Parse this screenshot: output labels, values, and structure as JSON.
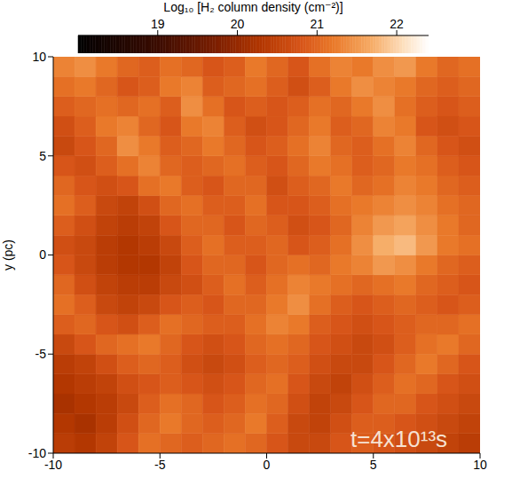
{
  "chart_data": {
    "type": "heatmap",
    "ylabel": "y (pc)",
    "xlim": [
      -10,
      10
    ],
    "ylim": [
      -10,
      10
    ],
    "xticks": [
      -10,
      -5,
      0,
      5,
      10
    ],
    "yticks": [
      -10,
      -5,
      0,
      5,
      10
    ],
    "annotation": "t=4x10¹³s",
    "colorbar": {
      "label": "Log₁₀ [H₂ column density (cm⁻²)]",
      "range": [
        18,
        22.4
      ],
      "ticks": [
        19,
        20,
        21,
        22
      ]
    },
    "cells": [
      [
        20.4,
        20.3,
        20.5,
        20.8,
        21.1,
        21.0,
        20.9,
        21.0,
        21.1,
        21.0,
        20.8,
        20.6,
        20.6,
        20.8,
        20.9,
        20.8,
        20.7,
        20.6,
        20.5,
        20.4
      ],
      [
        20.3,
        20.2,
        20.4,
        20.7,
        21.0,
        21.2,
        21.0,
        20.9,
        21.0,
        21.2,
        20.9,
        20.6,
        20.5,
        20.7,
        20.9,
        20.9,
        20.8,
        20.7,
        20.6,
        20.5
      ],
      [
        20.2,
        20.3,
        20.4,
        20.6,
        20.9,
        21.1,
        21.0,
        20.8,
        20.9,
        21.1,
        21.0,
        20.7,
        20.5,
        20.6,
        20.8,
        21.0,
        21.0,
        20.8,
        20.7,
        20.6
      ],
      [
        20.3,
        20.4,
        20.5,
        20.7,
        20.8,
        20.9,
        20.8,
        20.7,
        20.8,
        21.0,
        21.1,
        20.8,
        20.6,
        20.5,
        20.7,
        20.9,
        21.1,
        21.0,
        20.8,
        20.7
      ],
      [
        20.4,
        20.5,
        20.7,
        20.9,
        21.0,
        20.9,
        20.7,
        20.6,
        20.7,
        20.9,
        21.0,
        20.9,
        20.7,
        20.6,
        20.6,
        20.8,
        21.0,
        21.2,
        21.0,
        20.8
      ],
      [
        20.6,
        20.8,
        21.0,
        21.1,
        21.2,
        21.0,
        20.8,
        20.7,
        20.8,
        21.0,
        21.1,
        21.0,
        20.8,
        20.7,
        20.6,
        20.7,
        20.9,
        21.1,
        21.2,
        21.0
      ],
      [
        20.9,
        21.0,
        20.8,
        20.7,
        20.9,
        21.1,
        21.0,
        20.9,
        20.9,
        21.1,
        21.3,
        21.2,
        20.9,
        20.8,
        20.7,
        20.8,
        20.9,
        21.0,
        21.0,
        21.1
      ],
      [
        21.1,
        20.9,
        20.6,
        20.5,
        20.6,
        20.8,
        20.9,
        20.8,
        21.0,
        21.0,
        21.2,
        21.4,
        21.1,
        20.9,
        20.8,
        20.9,
        21.0,
        20.9,
        20.8,
        20.9
      ],
      [
        21.0,
        20.7,
        20.5,
        20.4,
        20.4,
        20.6,
        20.7,
        20.9,
        21.1,
        20.9,
        21.1,
        21.3,
        21.2,
        21.1,
        21.0,
        21.1,
        21.2,
        21.0,
        20.9,
        20.8
      ],
      [
        20.8,
        20.6,
        20.4,
        20.3,
        20.3,
        20.5,
        20.8,
        21.0,
        21.0,
        20.8,
        21.0,
        21.1,
        21.0,
        21.2,
        21.3,
        21.5,
        21.4,
        21.2,
        21.0,
        20.9
      ],
      [
        20.7,
        20.6,
        20.4,
        20.3,
        20.4,
        20.6,
        20.9,
        21.1,
        20.9,
        20.9,
        21.0,
        20.8,
        20.9,
        21.1,
        21.4,
        21.7,
        21.8,
        21.5,
        21.2,
        21.1
      ],
      [
        20.9,
        20.7,
        20.5,
        20.4,
        20.5,
        20.8,
        21.0,
        21.0,
        20.8,
        21.0,
        20.9,
        20.7,
        20.8,
        21.0,
        21.3,
        21.5,
        21.6,
        21.4,
        21.2,
        21.0
      ],
      [
        21.1,
        20.9,
        20.6,
        20.5,
        20.7,
        21.0,
        21.1,
        20.9,
        20.9,
        21.1,
        20.8,
        20.8,
        20.9,
        21.1,
        21.2,
        21.3,
        21.4,
        21.3,
        21.1,
        21.0
      ],
      [
        21.0,
        20.8,
        20.7,
        20.8,
        21.1,
        21.2,
        20.9,
        20.8,
        21.0,
        21.0,
        20.7,
        20.9,
        21.0,
        21.2,
        21.0,
        21.1,
        21.3,
        21.2,
        21.0,
        20.9
      ],
      [
        20.8,
        20.7,
        20.9,
        21.1,
        21.3,
        21.0,
        20.9,
        21.0,
        21.1,
        20.9,
        20.8,
        21.0,
        21.2,
        21.1,
        20.9,
        21.0,
        21.2,
        21.1,
        20.9,
        20.8
      ],
      [
        20.6,
        20.8,
        21.0,
        21.4,
        21.2,
        20.9,
        21.0,
        21.2,
        21.0,
        20.8,
        20.9,
        21.1,
        21.3,
        21.0,
        20.9,
        21.1,
        21.3,
        21.0,
        20.8,
        20.7
      ],
      [
        20.7,
        20.9,
        21.2,
        21.3,
        21.0,
        20.8,
        21.2,
        21.3,
        20.9,
        20.7,
        20.8,
        21.0,
        21.2,
        20.9,
        21.0,
        21.3,
        21.2,
        20.8,
        20.7,
        20.8
      ],
      [
        20.9,
        21.0,
        21.1,
        21.0,
        21.1,
        20.9,
        21.4,
        21.1,
        20.8,
        20.9,
        20.8,
        20.9,
        21.1,
        21.0,
        21.2,
        21.4,
        21.1,
        20.9,
        20.8,
        20.9
      ],
      [
        21.1,
        21.2,
        21.0,
        20.8,
        20.9,
        21.2,
        21.3,
        20.9,
        21.0,
        21.1,
        20.9,
        20.7,
        20.9,
        21.2,
        21.4,
        21.3,
        21.2,
        21.0,
        20.9,
        21.0
      ],
      [
        21.3,
        21.4,
        21.2,
        21.0,
        20.9,
        21.1,
        21.0,
        20.8,
        20.9,
        21.2,
        21.0,
        20.8,
        21.1,
        21.3,
        21.2,
        21.4,
        21.5,
        21.2,
        21.0,
        21.1
      ]
    ]
  }
}
